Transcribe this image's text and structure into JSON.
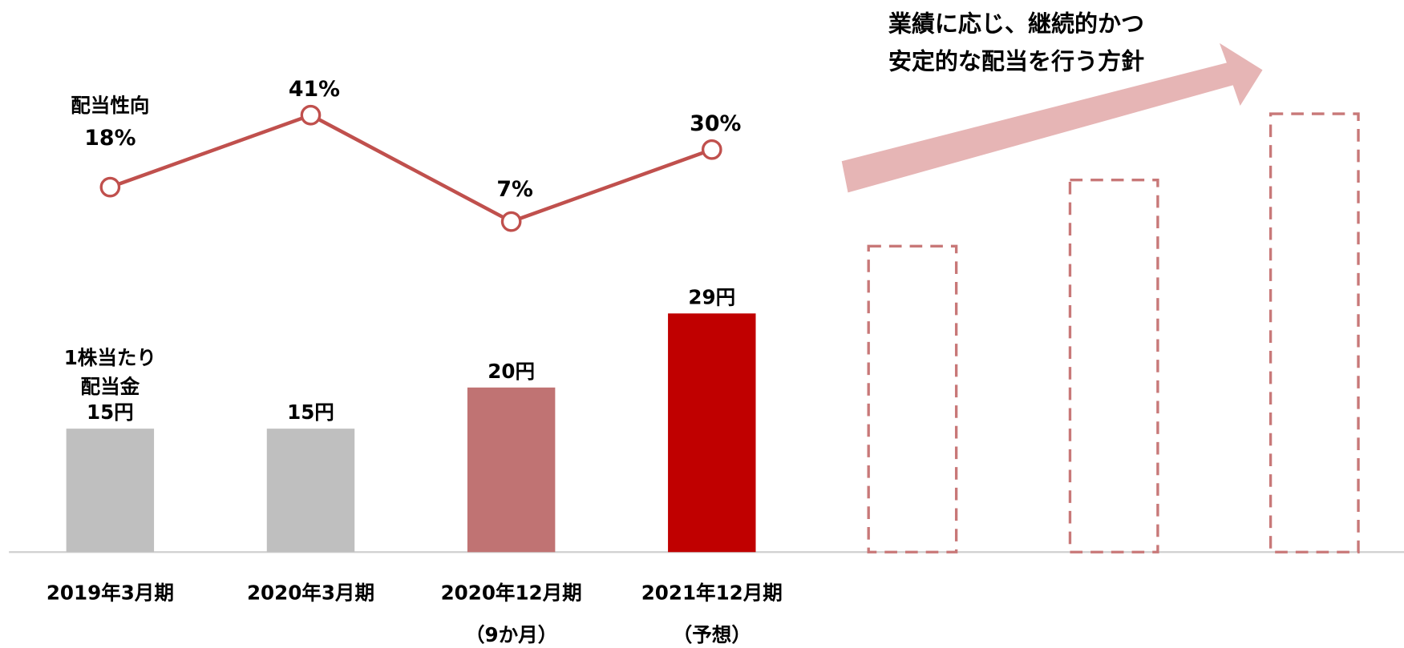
{
  "chart_data": {
    "type": "bar-line",
    "categories": [
      "2019年3月期",
      "2020年3月期",
      "2020年12月期",
      "2021年12月期"
    ],
    "category_notes": [
      null,
      null,
      "（9か月）",
      "（予想）"
    ],
    "series": [
      {
        "name": "1株当たり配当金",
        "type": "bar",
        "colors": [
          "#bfbfbf",
          "#bfbfbf",
          "#c07373",
          "#c00000"
        ],
        "values": [
          15,
          15,
          20,
          29
        ],
        "value_labels": [
          "15円",
          "15円",
          "20円",
          "29円"
        ]
      },
      {
        "name": "配当性向",
        "type": "line",
        "color": "#c0504d",
        "values": [
          18,
          41,
          7,
          30
        ],
        "value_labels": [
          "18%",
          "41%",
          "7%",
          "30%"
        ]
      }
    ],
    "annotation": [
      "業績に応じ、継続的かつ",
      "安定的な配当を行う方針"
    ]
  }
}
